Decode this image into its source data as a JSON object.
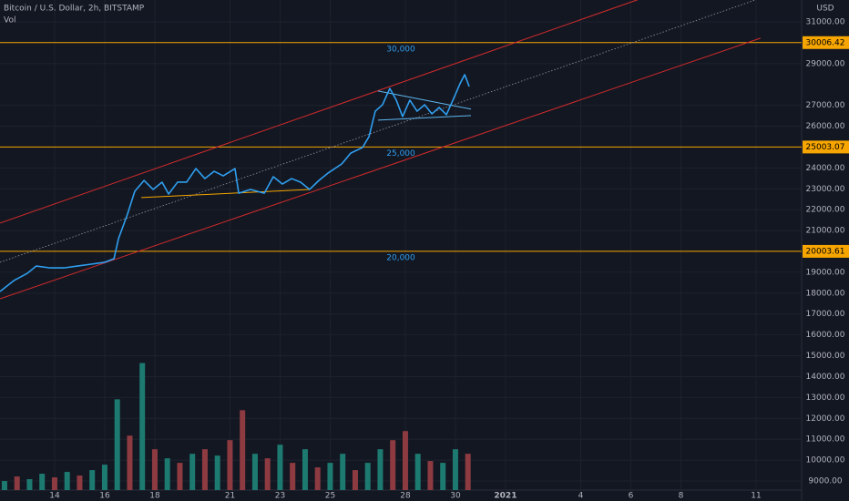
{
  "chart_data": {
    "type": "line",
    "title": "Bitcoin / U.S. Dollar, 2h, BITSTAMP",
    "subtitle": "Vol",
    "currency": "USD",
    "xlim": [
      11.82,
      43.82
    ],
    "ylim": [
      8564,
      32048
    ],
    "xticks": [
      14,
      16,
      18,
      21,
      23,
      25,
      28,
      30,
      {
        "value": 32,
        "label": "2021"
      },
      {
        "value": 35,
        "label": "4"
      },
      {
        "value": 37,
        "label": "6"
      },
      {
        "value": 39,
        "label": "8"
      },
      {
        "value": 42,
        "label": "11"
      }
    ],
    "yticks": [
      {
        "value": 31000,
        "label": "31000.00"
      },
      {
        "value": 29000,
        "label": "29000.00"
      },
      {
        "value": 27000,
        "label": "27000.00"
      },
      {
        "value": 26000,
        "label": "26000.00"
      },
      {
        "value": 24000,
        "label": "24000.00"
      },
      {
        "value": 23000,
        "label": "23000.00"
      },
      {
        "value": 22000,
        "label": "22000.00"
      },
      {
        "value": 21000,
        "label": "21000.00"
      },
      {
        "value": 19000,
        "label": "19000.00"
      },
      {
        "value": 18000,
        "label": "18000.00"
      },
      {
        "value": 17000,
        "label": "17000.00"
      },
      {
        "value": 16000,
        "label": "16000.00"
      },
      {
        "value": 15000,
        "label": "15000.00"
      },
      {
        "value": 14000,
        "label": "14000.00"
      },
      {
        "value": 13000,
        "label": "13000.00"
      },
      {
        "value": 12000,
        "label": "12000.00"
      },
      {
        "value": 11000,
        "label": "11000.00"
      },
      {
        "value": 10000,
        "label": "10000.00"
      },
      {
        "value": 9000,
        "label": "9000.00"
      }
    ],
    "grid": true,
    "price": {
      "color": "#2f9ff0",
      "x": [
        11.82,
        12.37,
        12.91,
        13.27,
        13.82,
        14.37,
        14.91,
        15.46,
        16.0,
        16.37,
        16.55,
        16.91,
        17.2,
        17.57,
        17.93,
        18.29,
        18.55,
        18.91,
        19.27,
        19.64,
        20.0,
        20.37,
        20.73,
        21.2,
        21.35,
        21.82,
        22.37,
        22.73,
        23.09,
        23.46,
        23.82,
        24.18,
        24.55,
        24.91,
        25.46,
        25.82,
        26.29,
        26.55,
        26.8,
        27.09,
        27.38,
        27.64,
        27.89,
        28.18,
        28.47,
        28.77,
        29.06,
        29.35,
        29.64,
        29.93,
        30.18,
        30.37,
        30.55
      ],
      "values": [
        18080,
        18600,
        18950,
        19300,
        19210,
        19210,
        19300,
        19390,
        19480,
        19650,
        20610,
        21790,
        22880,
        23400,
        22970,
        23320,
        22750,
        23320,
        23320,
        23970,
        23490,
        23840,
        23620,
        23970,
        22790,
        22970,
        22790,
        23580,
        23230,
        23490,
        23320,
        22970,
        23400,
        23750,
        24190,
        24710,
        24980,
        25500,
        26720,
        27030,
        27810,
        27250,
        26460,
        27250,
        26720,
        27030,
        26590,
        26900,
        26550,
        27330,
        28030,
        28470,
        27900
      ]
    },
    "volume": {
      "ylim": [
        0,
        540
      ],
      "x": [
        12,
        12.5,
        13,
        13.5,
        14,
        14.5,
        15,
        15.5,
        16,
        16.5,
        17,
        17.5,
        18,
        18.5,
        19,
        19.5,
        20,
        20.5,
        21,
        21.5,
        22,
        22.5,
        23,
        23.5,
        24,
        24.5,
        25,
        25.5,
        26,
        26.5,
        27,
        27.5,
        28,
        28.5,
        29,
        29.5,
        30,
        30.5
      ],
      "values": [
        10,
        15,
        12,
        18,
        14,
        20,
        16,
        22,
        28,
        100,
        60,
        140,
        45,
        35,
        30,
        40,
        45,
        38,
        55,
        88,
        40,
        35,
        50,
        30,
        45,
        25,
        30,
        40,
        22,
        30,
        45,
        55,
        65,
        40,
        32,
        30,
        45,
        40
      ],
      "colors": [
        "#1d7a70",
        "#8e3a41",
        "#1d7a70",
        "#1d7a70",
        "#8e3a41",
        "#1d7a70",
        "#8e3a41",
        "#1d7a70",
        "#1d7a70",
        "#1d7a70",
        "#8e3a41",
        "#1d7a70",
        "#8e3a41",
        "#1d7a70",
        "#8e3a41",
        "#1d7a70",
        "#8e3a41",
        "#1d7a70",
        "#8e3a41",
        "#8e3a41",
        "#1d7a70",
        "#8e3a41",
        "#1d7a70",
        "#8e3a41",
        "#1d7a70",
        "#8e3a41",
        "#1d7a70",
        "#1d7a70",
        "#8e3a41",
        "#1d7a70",
        "#1d7a70",
        "#8e3a41",
        "#8e3a41",
        "#1d7a70",
        "#8e3a41",
        "#1d7a70",
        "#1d7a70",
        "#8e3a41"
      ]
    },
    "levels": [
      {
        "price": 30006.42,
        "name": "30,000"
      },
      {
        "price": 25003.07,
        "name": "25,000"
      },
      {
        "price": 20003.61,
        "name": "20,000"
      }
    ],
    "level_color": "#f7a600",
    "trendlines": [
      {
        "color": "#d12b2b",
        "dash": false,
        "x": [
          11.82,
          37.27
        ],
        "values": [
          21360,
          32060
        ]
      },
      {
        "color": "#d12b2b",
        "dash": false,
        "x": [
          11.82,
          42.18
        ],
        "values": [
          17730,
          30220
        ]
      },
      {
        "color": "#9598a1",
        "dash": true,
        "x": [
          11.82,
          42.0
        ],
        "values": [
          19480,
          32060
        ]
      },
      {
        "color": "#5fb8f0",
        "dash": false,
        "x": [
          26.91,
          30.62
        ],
        "values": [
          27690,
          26820
        ]
      },
      {
        "color": "#5fb8f0",
        "dash": false,
        "x": [
          26.91,
          30.62
        ],
        "values": [
          26290,
          26510
        ]
      },
      {
        "color": "#f7a600",
        "dash": false,
        "x": [
          17.46,
          24.18
        ],
        "values": [
          22580,
          22970
        ]
      }
    ]
  }
}
